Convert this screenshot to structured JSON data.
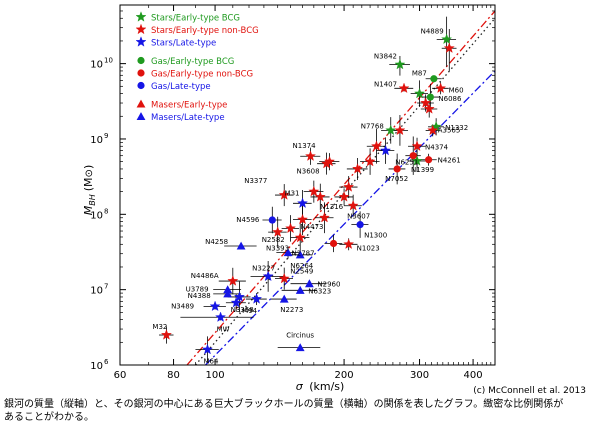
{
  "chart_data": {
    "type": "scatter",
    "x_axis": {
      "label_symbol": "σ",
      "label_unit": "(km/s)",
      "scale": "log",
      "range": [
        60,
        450
      ],
      "ticks": [
        60,
        80,
        100,
        200,
        300,
        400
      ],
      "tick_labels": [
        "60",
        "80",
        "100",
        "200",
        "300",
        "400"
      ]
    },
    "y_axis": {
      "label_main": "M",
      "label_sub": "BH",
      "label_unit": "(M",
      "label_unit_end": ")",
      "scale": "log",
      "range": [
        1000000,
        60000000000
      ],
      "ticks": [
        1000000,
        10000000,
        100000000,
        1000000000,
        10000000000
      ],
      "tick_mantissa": "10",
      "tick_exponents": [
        "6",
        "7",
        "8",
        "9",
        "10"
      ]
    },
    "colors": {
      "bcg": "#1f9a1f",
      "nonbcg": "#e0120d",
      "late": "#1515e6",
      "axis": "#000000"
    },
    "legend": {
      "placement": "top-left",
      "entries": [
        {
          "label": "Stars/Early-type BCG",
          "marker": "star",
          "color": "#1f9a1f"
        },
        {
          "label": "Stars/Early-type non-BCG",
          "marker": "star",
          "color": "#e0120d"
        },
        {
          "label": "Stars/Late-type",
          "marker": "star",
          "color": "#1515e6"
        },
        {
          "label": "Gas/Early-type BCG",
          "marker": "circle",
          "color": "#1f9a1f"
        },
        {
          "label": "Gas/Early-type non-BCG",
          "marker": "circle",
          "color": "#e0120d"
        },
        {
          "label": "Gas/Late-type",
          "marker": "circle",
          "color": "#1515e6"
        },
        {
          "label": "Masers/Early-type",
          "marker": "triangle",
          "color": "#e0120d"
        },
        {
          "label": "Masers/Late-type",
          "marker": "triangle",
          "color": "#1515e6"
        }
      ]
    },
    "fit_lines": [
      {
        "color": "#e0120d",
        "style": "dashdot",
        "points": [
          [
            86,
            1000000
          ],
          [
            450,
            50000000000
          ]
        ]
      },
      {
        "color": "#1515e6",
        "style": "dashdot",
        "points": [
          [
            95,
            1000000
          ],
          [
            450,
            8000000000
          ]
        ]
      },
      {
        "color": "#222222",
        "style": "dotted",
        "points": [
          [
            90,
            1000000
          ],
          [
            450,
            40000000000
          ]
        ]
      }
    ],
    "points": [
      {
        "name": "N4889",
        "sigma": 347,
        "mass": 21000000000,
        "marker": "star",
        "color": "#1f9a1f",
        "ex": 18,
        "ey_up": 2.0,
        "ey_dn": 2.3
      },
      {
        "name": "",
        "sigma": 352,
        "mass": 16000000000,
        "marker": "star",
        "color": "#e0120d",
        "ex": 14,
        "ey_up": 1.8,
        "ey_dn": 2.0
      },
      {
        "name": "N3842",
        "sigma": 270,
        "mass": 9700000000,
        "marker": "star",
        "color": "#1f9a1f",
        "ex": 15,
        "ey_up": 1.3,
        "ey_dn": 1.4
      },
      {
        "name": "M87",
        "sigma": 324,
        "mass": 6300000000,
        "marker": "circle",
        "color": "#1f9a1f",
        "ex": 14,
        "ey_up": 1.1,
        "ey_dn": 1.1
      },
      {
        "name": "N1407",
        "sigma": 276,
        "mass": 4700000000,
        "marker": "star",
        "color": "#e0120d",
        "ex": 14,
        "ey_up": 1.1,
        "ey_dn": 1.1
      },
      {
        "name": "M60",
        "sigma": 336,
        "mass": 4700000000,
        "marker": "star",
        "color": "#e0120d",
        "ex": 15,
        "ey_up": 1.2,
        "ey_dn": 1.2
      },
      {
        "name": "",
        "sigma": 300,
        "mass": 4000000000,
        "marker": "star",
        "color": "#1f9a1f",
        "ex": 14,
        "ey_up": 1.5,
        "ey_dn": 1.5
      },
      {
        "name": "N6086",
        "sigma": 318,
        "mass": 3600000000,
        "marker": "circle",
        "color": "#1f9a1f",
        "ex": 16,
        "ey_up": 1.5,
        "ey_dn": 1.5
      },
      {
        "name": "",
        "sigma": 310,
        "mass": 3000000000,
        "marker": "star",
        "color": "#e0120d",
        "ex": 14,
        "ey_up": 1.3,
        "ey_dn": 1.3
      },
      {
        "name": "",
        "sigma": 316,
        "mass": 2500000000,
        "marker": "star",
        "color": "#e0120d",
        "ex": 14,
        "ey_up": 1.3,
        "ey_dn": 1.3
      },
      {
        "name": "N7768",
        "sigma": 257,
        "mass": 1300000000,
        "marker": "star",
        "color": "#1f9a1f",
        "ex": 13,
        "ey_up": 1.5,
        "ey_dn": 1.5
      },
      {
        "name": "N1332",
        "sigma": 328,
        "mass": 1450000000,
        "marker": "star",
        "color": "#1f9a1f",
        "ex": 14,
        "ey_up": 1.3,
        "ey_dn": 1.3
      },
      {
        "name": "A3565",
        "sigma": 322,
        "mass": 1300000000,
        "marker": "star",
        "color": "#e0120d",
        "ex": 12,
        "ey_up": 1.2,
        "ey_dn": 1.2
      },
      {
        "name": "",
        "sigma": 270,
        "mass": 1300000000,
        "marker": "star",
        "color": "#e0120d",
        "ex": 12,
        "ey_up": 1.6,
        "ey_dn": 1.6
      },
      {
        "name": "",
        "sigma": 238,
        "mass": 800000000,
        "marker": "star",
        "color": "#e0120d",
        "ex": 12,
        "ey_up": 1.7,
        "ey_dn": 1.7
      },
      {
        "name": "",
        "sigma": 250,
        "mass": 700000000,
        "marker": "star",
        "color": "#1515e6",
        "ex": 12,
        "ey_up": 1.5,
        "ey_dn": 1.5
      },
      {
        "name": "N4374",
        "sigma": 296,
        "mass": 800000000,
        "marker": "star",
        "color": "#e0120d",
        "ex": 14,
        "ey_up": 1.3,
        "ey_dn": 1.3
      },
      {
        "name": "N4261",
        "sigma": 315,
        "mass": 530000000,
        "marker": "circle",
        "color": "#e0120d",
        "ex": 14,
        "ey_up": 1.2,
        "ey_dn": 1.2
      },
      {
        "name": "N1399",
        "sigma": 296,
        "mass": 510000000,
        "marker": "star",
        "color": "#1f9a1f",
        "ex": 14,
        "ey_up": 1.4,
        "ey_dn": 1.4
      },
      {
        "name": "N6251",
        "sigma": 290,
        "mass": 600000000,
        "marker": "circle",
        "color": "#e0120d",
        "ex": 12,
        "ey_up": 1.8,
        "ey_dn": 1.8
      },
      {
        "name": "N7052",
        "sigma": 266,
        "mass": 400000000,
        "marker": "circle",
        "color": "#e0120d",
        "ex": 12,
        "ey_up": 1.6,
        "ey_dn": 1.6
      },
      {
        "name": "",
        "sigma": 230,
        "mass": 500000000,
        "marker": "star",
        "color": "#e0120d",
        "ex": 12,
        "ey_up": 1.5,
        "ey_dn": 1.5
      },
      {
        "name": "",
        "sigma": 215,
        "mass": 400000000,
        "marker": "star",
        "color": "#e0120d",
        "ex": 12,
        "ey_up": 1.4,
        "ey_dn": 1.4
      },
      {
        "name": "N1374",
        "sigma": 167,
        "mass": 590000000,
        "marker": "star",
        "color": "#e0120d",
        "ex": 9,
        "ey_up": 1.3,
        "ey_dn": 1.3
      },
      {
        "name": "",
        "sigma": 185,
        "mass": 500000000,
        "marker": "star",
        "color": "#e0120d",
        "ex": 10,
        "ey_up": 1.3,
        "ey_dn": 1.3
      },
      {
        "name": "N3608",
        "sigma": 182,
        "mass": 470000000,
        "marker": "star",
        "color": "#e0120d",
        "ex": 9,
        "ey_up": 1.4,
        "ey_dn": 1.4
      },
      {
        "name": "N3377",
        "sigma": 145,
        "mass": 180000000,
        "marker": "star",
        "color": "#e0120d",
        "ex": 7,
        "ey_up": 1.4,
        "ey_dn": 1.4
      },
      {
        "name": "M31",
        "sigma": 160,
        "mass": 140000000,
        "marker": "star",
        "color": "#1515e6",
        "ex": 8,
        "ey_up": 1.5,
        "ey_dn": 1.5
      },
      {
        "name": "N1316",
        "sigma": 200,
        "mass": 170000000,
        "marker": "star",
        "color": "#e0120d",
        "ex": 10,
        "ey_up": 1.3,
        "ey_dn": 1.3
      },
      {
        "name": "",
        "sigma": 170,
        "mass": 200000000,
        "marker": "star",
        "color": "#e0120d",
        "ex": 9,
        "ey_up": 1.4,
        "ey_dn": 1.4
      },
      {
        "name": "",
        "sigma": 176,
        "mass": 170000000,
        "marker": "star",
        "color": "#e0120d",
        "ex": 9,
        "ey_up": 1.5,
        "ey_dn": 1.5
      },
      {
        "name": "",
        "sigma": 205,
        "mass": 230000000,
        "marker": "star",
        "color": "#e0120d",
        "ex": 10,
        "ey_up": 1.4,
        "ey_dn": 1.4
      },
      {
        "name": "N4596",
        "sigma": 136,
        "mass": 84000000,
        "marker": "circle",
        "color": "#1515e6",
        "ex": 7,
        "ey_up": 1.5,
        "ey_dn": 1.5
      },
      {
        "name": "N3607",
        "sigma": 210,
        "mass": 130000000,
        "marker": "star",
        "color": "#e0120d",
        "ex": 10,
        "ey_up": 1.4,
        "ey_dn": 1.4
      },
      {
        "name": "N4473",
        "sigma": 180,
        "mass": 90000000,
        "marker": "star",
        "color": "#e0120d",
        "ex": 9,
        "ey_up": 1.6,
        "ey_dn": 1.6
      },
      {
        "name": "",
        "sigma": 160,
        "mass": 85000000,
        "marker": "star",
        "color": "#e0120d",
        "ex": 8,
        "ey_up": 1.6,
        "ey_dn": 1.6
      },
      {
        "name": "",
        "sigma": 150,
        "mass": 65000000,
        "marker": "star",
        "color": "#e0120d",
        "ex": 7,
        "ey_up": 1.5,
        "ey_dn": 1.5
      },
      {
        "name": "N1300",
        "sigma": 218,
        "mass": 73000000,
        "marker": "circle",
        "color": "#1515e6",
        "ex": 10,
        "ey_up": 1.5,
        "ey_dn": 1.5
      },
      {
        "name": "N2582",
        "sigma": 140,
        "mass": 58000000,
        "marker": "star",
        "color": "#e0120d",
        "ex": 7,
        "ey_up": 1.6,
        "ey_dn": 1.6
      },
      {
        "name": "",
        "sigma": 158,
        "mass": 49000000,
        "marker": "star",
        "color": "#e0120d",
        "ex": 8,
        "ey_up": 1.6,
        "ey_dn": 1.6
      },
      {
        "name": "N4258",
        "sigma": 115,
        "mass": 38000000,
        "marker": "triangle",
        "color": "#1515e6",
        "ex": 10,
        "ey_up": 1.05,
        "ey_dn": 1.05
      },
      {
        "name": "N3393",
        "sigma": 148,
        "mass": 31000000,
        "marker": "triangle",
        "color": "#1515e6",
        "ex": 9,
        "ey_up": 1.2,
        "ey_dn": 1.2
      },
      {
        "name": "N6264",
        "sigma": 158,
        "mass": 29000000,
        "marker": "triangle",
        "color": "#1515e6",
        "ex": 10,
        "ey_up": 1.1,
        "ey_dn": 1.1
      },
      {
        "name": "N2787",
        "sigma": 189,
        "mass": 41000000,
        "marker": "circle",
        "color": "#e0120d",
        "ex": 9,
        "ey_up": 1.3,
        "ey_dn": 1.3
      },
      {
        "name": "N1023",
        "sigma": 205,
        "mass": 40000000,
        "marker": "star",
        "color": "#e0120d",
        "ex": 10,
        "ey_up": 1.2,
        "ey_dn": 1.2
      },
      {
        "name": "N3227",
        "sigma": 133,
        "mass": 15000000,
        "marker": "star",
        "color": "#1515e6",
        "ex": 12,
        "ey_up": 1.6,
        "ey_dn": 1.6
      },
      {
        "name": "N2549",
        "sigma": 145,
        "mass": 14000000,
        "marker": "star",
        "color": "#e0120d",
        "ex": 7,
        "ey_up": 1.4,
        "ey_dn": 1.4
      },
      {
        "name": "N2960",
        "sigma": 166,
        "mass": 12000000,
        "marker": "triangle",
        "color": "#1515e6",
        "ex": 16,
        "ey_up": 1.1,
        "ey_dn": 1.1
      },
      {
        "name": "N6323",
        "sigma": 158,
        "mass": 9800000,
        "marker": "triangle",
        "color": "#1515e6",
        "ex": 15,
        "ey_up": 1.1,
        "ey_dn": 1.1
      },
      {
        "name": "N4486A",
        "sigma": 110,
        "mass": 13000000,
        "marker": "star",
        "color": "#e0120d",
        "ex": 8,
        "ey_up": 1.5,
        "ey_dn": 1.5
      },
      {
        "name": "U3789",
        "sigma": 107,
        "mass": 10000000,
        "marker": "triangle",
        "color": "#1515e6",
        "ex": 8,
        "ey_up": 1.1,
        "ey_dn": 1.1
      },
      {
        "name": "N4388",
        "sigma": 107,
        "mass": 8800000,
        "marker": "triangle",
        "color": "#1515e6",
        "ex": 8,
        "ey_up": 1.1,
        "ey_dn": 1.1
      },
      {
        "name": "",
        "sigma": 114,
        "mass": 8000000,
        "marker": "star",
        "color": "#1515e6",
        "ex": 7,
        "ey_up": 1.6,
        "ey_dn": 1.6
      },
      {
        "name": "M94",
        "sigma": 112,
        "mass": 6700000,
        "marker": "star",
        "color": "#1515e6",
        "ex": 6,
        "ey_up": 1.3,
        "ey_dn": 1.3
      },
      {
        "name": "N3368",
        "sigma": 125,
        "mass": 7500000,
        "marker": "star",
        "color": "#1515e6",
        "ex": 7,
        "ey_up": 1.2,
        "ey_dn": 1.2
      },
      {
        "name": "N2273",
        "sigma": 145,
        "mass": 7500000,
        "marker": "triangle",
        "color": "#1515e6",
        "ex": 10,
        "ey_up": 1.1,
        "ey_dn": 1.1
      },
      {
        "name": "N3489",
        "sigma": 100,
        "mass": 6000000,
        "marker": "star",
        "color": "#1515e6",
        "ex": 6,
        "ey_up": 1.1,
        "ey_dn": 1.1
      },
      {
        "name": "MW",
        "sigma": 103,
        "mass": 4300000,
        "marker": "star",
        "color": "#1515e6",
        "ex": 20,
        "ey_up": 1.1,
        "ey_dn": 1.1
      },
      {
        "name": "M32",
        "sigma": 77,
        "mass": 2500000,
        "marker": "star",
        "color": "#e0120d",
        "ex": 3,
        "ey_up": 1.3,
        "ey_dn": 1.3
      },
      {
        "name": "M64",
        "sigma": 96,
        "mass": 1600000,
        "marker": "star",
        "color": "#1515e6",
        "ex": 6,
        "ey_up": 1.5,
        "ey_dn": 1.5
      },
      {
        "name": "Circinus",
        "sigma": 158,
        "mass": 1700000,
        "marker": "triangle",
        "color": "#1515e6",
        "ex": 18,
        "ey_up": 1.1,
        "ey_dn": 1.1
      }
    ]
  },
  "credit": "(c) McConnell et al. 2013",
  "caption": "銀河の質量（縦軸）と、その銀河の中心にある巨大ブラックホールの質量（横軸）の関係を表したグラフ。緻密な比例関係があることがわかる。"
}
